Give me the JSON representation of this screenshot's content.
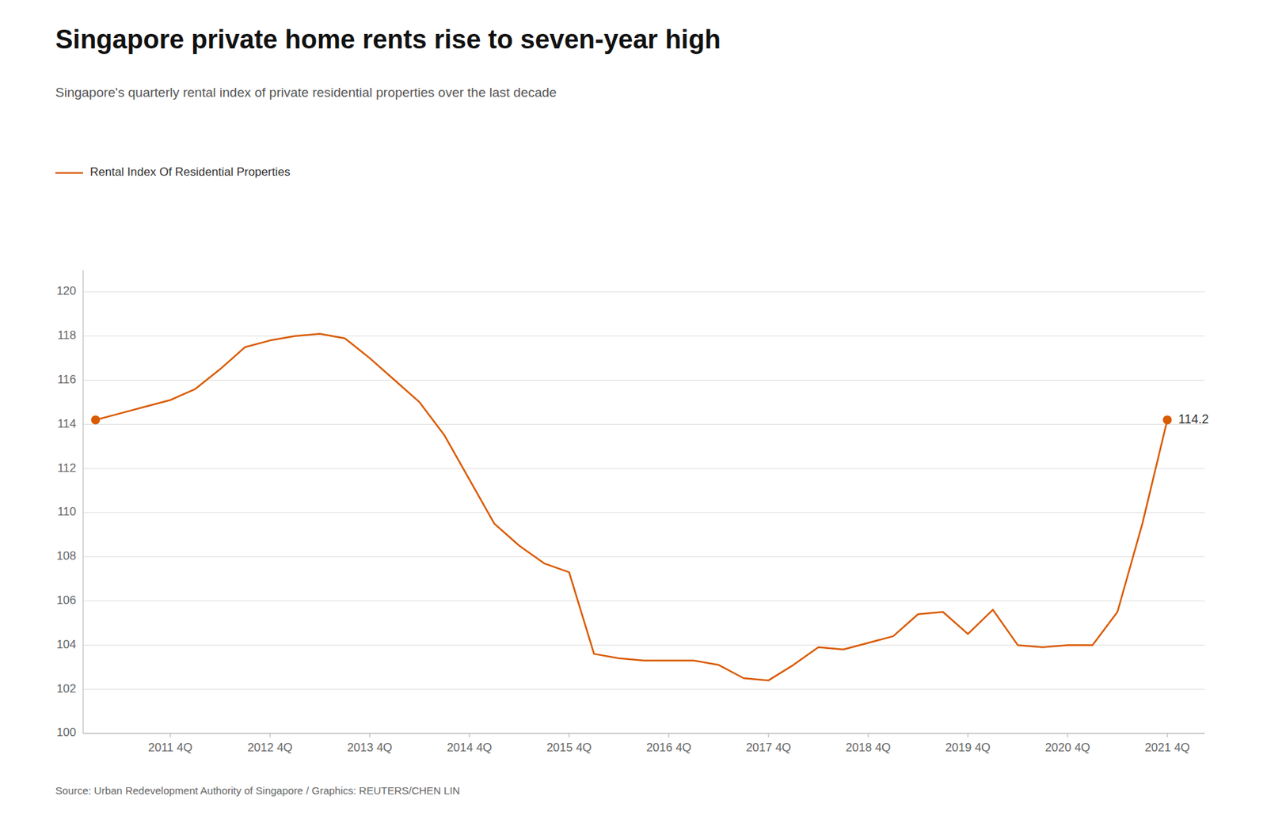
{
  "chart_data": {
    "type": "line",
    "title": "Singapore private home rents rise to seven-year high",
    "subtitle": "Singapore's quarterly rental index of private residential properties over the last decade",
    "source": "Source: Urban Redevelopment Authority of Singapore / Graphics: REUTERS/CHEN LIN",
    "annotation": "114.2",
    "categories": [
      null,
      null,
      null,
      "2011 4Q",
      null,
      null,
      null,
      "2012 4Q",
      null,
      null,
      null,
      "2013 4Q",
      null,
      null,
      null,
      "2014 4Q",
      null,
      null,
      null,
      "2015 4Q",
      null,
      null,
      null,
      "2016 4Q",
      null,
      null,
      null,
      "2017 4Q",
      null,
      null,
      null,
      "2018 4Q",
      null,
      null,
      null,
      "2019 4Q",
      null,
      null,
      null,
      "2020 4Q",
      null,
      null,
      null,
      "2021 4Q"
    ],
    "series": [
      {
        "name": "Rental Index Of Residential Properties",
        "color": "#D95B00",
        "values": [
          114.2,
          114.5,
          114.8,
          115.1,
          115.6,
          116.5,
          117.5,
          117.8,
          118.0,
          118.1,
          117.9,
          117.0,
          116.0,
          115.0,
          113.5,
          111.5,
          109.5,
          108.5,
          107.7,
          107.3,
          103.6,
          103.4,
          103.3,
          103.3,
          103.3,
          103.1,
          102.5,
          102.4,
          103.1,
          103.9,
          103.8,
          104.1,
          104.4,
          105.4,
          105.5,
          104.5,
          105.6,
          104.0,
          103.9,
          104.0,
          104.0,
          105.5,
          109.5,
          114.2
        ]
      }
    ],
    "ylim": [
      100,
      121
    ],
    "yticks": [
      100,
      102,
      104,
      106,
      108,
      110,
      112,
      114,
      116,
      118,
      120
    ],
    "grid": true,
    "legend": "top left"
  }
}
